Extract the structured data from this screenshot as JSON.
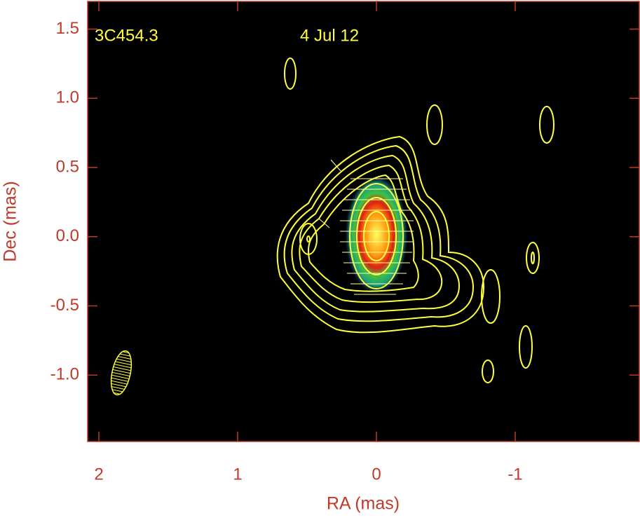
{
  "chart_data": {
    "type": "image",
    "annotations": [
      "3C454.3",
      "4 Jul 12"
    ],
    "x_label": "RA (mas)",
    "y_label": "Dec (mas)",
    "xlim": [
      2.081,
      -1.894
    ],
    "ylim": [
      -1.48,
      1.7
    ],
    "xticks": [
      2,
      1,
      0,
      -1
    ],
    "yticks": [
      {
        "value": 1.5,
        "label": "1.5"
      },
      {
        "value": 1.0,
        "label": "1.0"
      },
      {
        "value": 0.5,
        "label": "0.5"
      },
      {
        "value": 0.0,
        "label": "0.0"
      },
      {
        "value": -0.5,
        "label": "-0.5"
      },
      {
        "value": -1.0,
        "label": "-1.0"
      }
    ],
    "axis_color": "#c0392b",
    "contour_color": "#ffff40"
  }
}
